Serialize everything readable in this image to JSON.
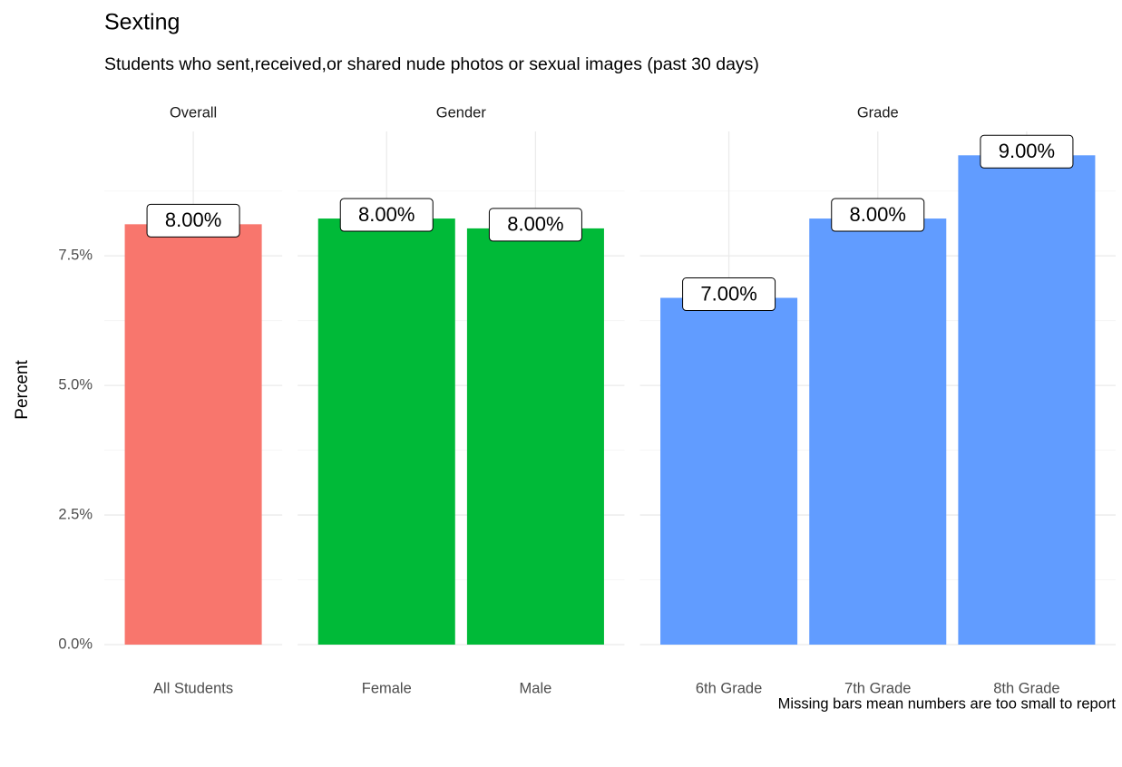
{
  "chart_data": {
    "type": "bar",
    "title": "Sexting",
    "subtitle": "Students who sent,received,or shared nude photos or sexual images (past 30 days)",
    "y_label": "Percent",
    "caption": "Missing bars mean numbers are too small to report",
    "ylim": [
      0,
      9.9
    ],
    "yticks": [
      {
        "value": 0,
        "label": "0.0%"
      },
      {
        "value": 2.5,
        "label": "2.5%"
      },
      {
        "value": 5,
        "label": "5.0%"
      },
      {
        "value": 7.5,
        "label": "7.5%"
      }
    ],
    "grid": true,
    "facets": [
      {
        "name": "Overall",
        "color": "#f8766d",
        "categories": [
          "All Students"
        ],
        "values": [
          8.11
        ],
        "value_labels": [
          "8.00%"
        ]
      },
      {
        "name": "Gender",
        "color": "#00ba38",
        "categories": [
          "Female",
          "Male"
        ],
        "values": [
          8.22,
          8.03
        ],
        "value_labels": [
          "8.00%",
          "8.00%"
        ]
      },
      {
        "name": "Grade",
        "color": "#619cff",
        "categories": [
          "6th Grade",
          "7th Grade",
          "8th Grade"
        ],
        "values": [
          6.69,
          8.22,
          9.44
        ],
        "value_labels": [
          "7.00%",
          "8.00%",
          "9.00%"
        ]
      }
    ]
  }
}
